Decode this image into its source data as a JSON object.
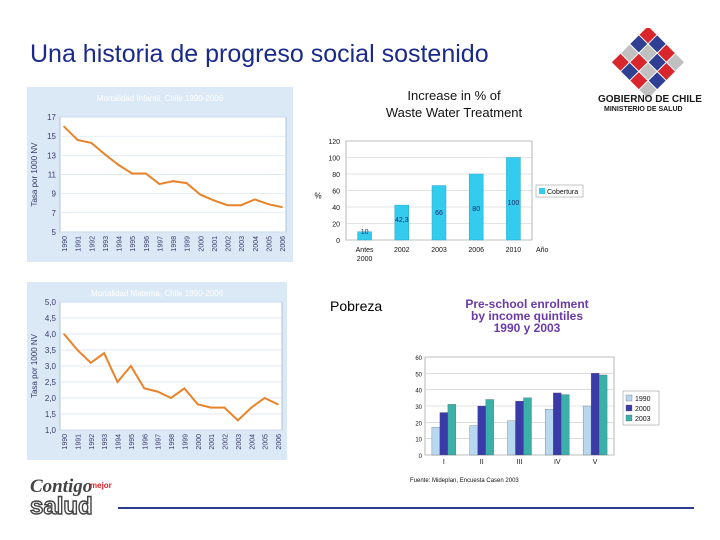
{
  "slide": {
    "title": "Una historia de progreso social sostenido",
    "pobreza_label": "Pobreza"
  },
  "logo": {
    "line1": "GOBIERNO DE CHILE",
    "line2": "MINISTERIO DE SALUD"
  },
  "bottom_logo": {
    "word1": "Contigo",
    "word2": "mejor",
    "word3": "salud"
  },
  "colors": {
    "title": "#1a2a8a",
    "chart_bg": "#dbe9f7",
    "line": "#e8832a",
    "bar_cyan": "#33ccee"
  },
  "chart_data": [
    {
      "type": "line",
      "title": "Mortalidad Infantil, Chile 1990-2006",
      "ylabel": "Tasa por 1000 NV",
      "x": [
        "1990",
        "1991",
        "1992",
        "1993",
        "1994",
        "1995",
        "1996",
        "1997",
        "1998",
        "1999",
        "2000",
        "2001",
        "2002",
        "2003",
        "2004",
        "2005",
        "2006"
      ],
      "values": [
        16.0,
        14.6,
        14.3,
        13.1,
        12.0,
        11.1,
        11.1,
        10.0,
        10.3,
        10.1,
        8.9,
        8.3,
        7.8,
        7.8,
        8.4,
        7.9,
        7.6
      ],
      "yticks": [
        "17",
        "15",
        "13",
        "11",
        "9",
        "7",
        "5"
      ],
      "ylim": [
        5,
        17
      ]
    },
    {
      "type": "line",
      "title": "Mortalidad Materna, Chile 1990-2006",
      "ylabel": "Tasa por 1000 NV",
      "x": [
        "1990",
        "1991",
        "1992",
        "1993",
        "1994",
        "1995",
        "1996",
        "1997",
        "1998",
        "1999",
        "2000",
        "2001",
        "2002",
        "2003",
        "2004",
        "2005",
        "2006"
      ],
      "values": [
        4.0,
        3.5,
        3.1,
        3.4,
        2.5,
        3.0,
        2.3,
        2.2,
        2.0,
        2.3,
        1.8,
        1.7,
        1.7,
        1.3,
        1.7,
        2.0,
        1.8
      ],
      "yticks": [
        "5,0",
        "4,5",
        "4,0",
        "3,5",
        "3,0",
        "2,5",
        "2,0",
        "1,5",
        "1,0"
      ],
      "ylim": [
        1.0,
        5.0
      ]
    },
    {
      "type": "bar",
      "title": "Increase in % of Waste Water Treatment",
      "ylabel": "%",
      "xlabel": "Año",
      "categories": [
        "Antes 2000",
        "2002",
        "2003",
        "2006",
        "2010"
      ],
      "values": [
        10,
        42.3,
        66,
        80,
        100
      ],
      "value_labels": [
        "10",
        "42,3",
        "66",
        "80",
        "100"
      ],
      "yticks": [
        "120",
        "100",
        "80",
        "60",
        "40",
        "20",
        "0"
      ],
      "ylim": [
        0,
        120
      ],
      "legend": "Cobertura"
    },
    {
      "type": "bar",
      "title": "Pre-school enrolment by income quintiles 1990 y 2003",
      "categories": [
        "I",
        "II",
        "III",
        "IV",
        "V"
      ],
      "series": [
        {
          "name": "1990",
          "values": [
            17,
            18,
            21,
            28,
            30
          ]
        },
        {
          "name": "2000",
          "values": [
            26,
            30,
            33,
            38,
            50
          ]
        },
        {
          "name": "2003",
          "values": [
            31,
            34,
            35,
            37,
            49
          ]
        }
      ],
      "yticks": [
        "60",
        "50",
        "40",
        "30",
        "20",
        "10",
        "0"
      ],
      "ylim": [
        0,
        60
      ],
      "source": "Fuente: Mideplan, Encuesta Casen 2003"
    }
  ]
}
